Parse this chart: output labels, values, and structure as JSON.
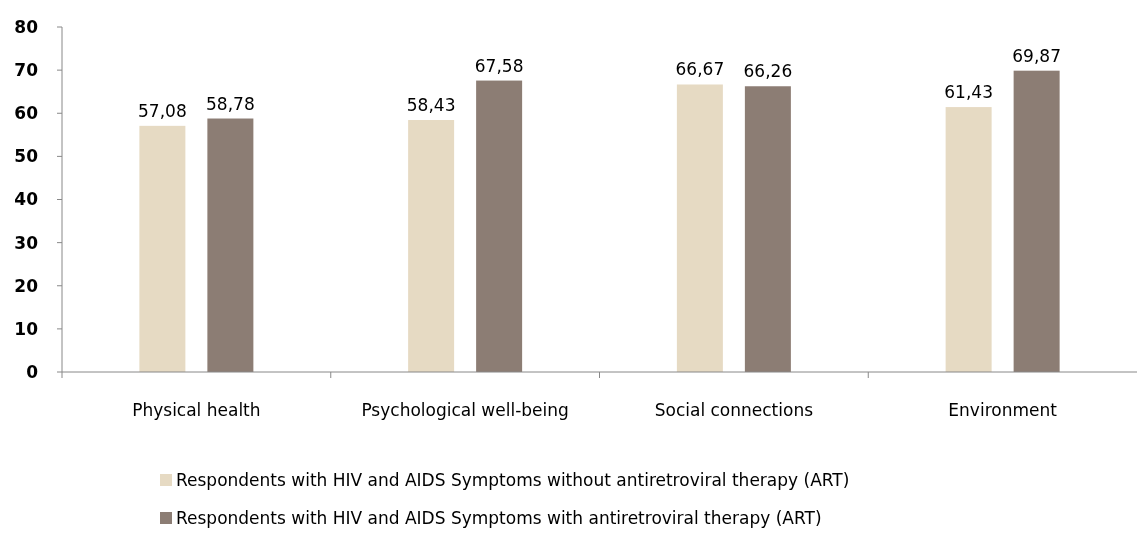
{
  "chart_data": {
    "type": "bar",
    "categories": [
      "Physical health",
      "Psychological well-being",
      "Social connections",
      "Environment"
    ],
    "series": [
      {
        "name": "Respondents with HIV and AIDS Symptoms without antiretroviral therapy (ART)",
        "color": "#e6dac3",
        "values": [
          57.08,
          58.43,
          66.67,
          61.43
        ],
        "value_labels": [
          "57,08",
          "58,43",
          "66,67",
          "61,43"
        ]
      },
      {
        "name": "Respondents with HIV and AIDS Symptoms with antiretroviral therapy (ART)",
        "color": "#8c7d74",
        "values": [
          58.78,
          67.58,
          66.26,
          69.87
        ],
        "value_labels": [
          "58,78",
          "67,58",
          "66,26",
          "69,87"
        ]
      }
    ],
    "ylim": [
      0,
      80
    ],
    "yticks": [
      0,
      10,
      20,
      30,
      40,
      50,
      60,
      70,
      80
    ],
    "grid": false,
    "legend": "bottom"
  }
}
